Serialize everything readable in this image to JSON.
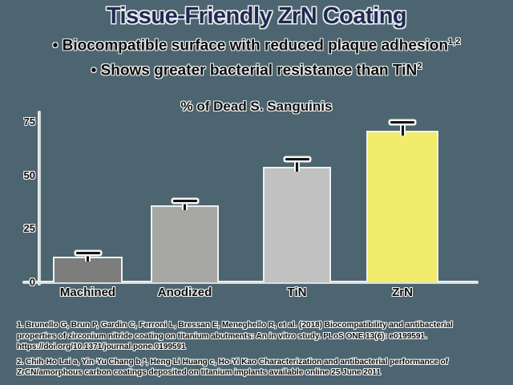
{
  "slide": {
    "title": "Tissue-Friendly ZrN Coating",
    "bullets": [
      {
        "marker": "• ",
        "text": "Biocompatible surface with reduced plaque adhesion",
        "sup": "1,2"
      },
      {
        "marker": "• ",
        "text": "Shows greater bacterial resistance than TiN",
        "sup": "2"
      }
    ]
  },
  "chart_data": {
    "type": "bar",
    "title": "% of Dead S. Sanguinis",
    "categories": [
      "Machined",
      "Anodized",
      "TiN",
      "ZrN"
    ],
    "values": [
      12,
      36,
      54,
      71
    ],
    "error_bars": [
      1.5,
      2,
      3.5,
      3.5
    ],
    "bar_colors": [
      "#7d7d7d",
      "#a7a7a5",
      "#c1c1c1",
      "#f2ec6d"
    ],
    "highlight_category": "ZrN",
    "xlabel": "",
    "ylabel": "",
    "yticks": [
      0,
      25,
      50,
      75
    ],
    "ylim": [
      0,
      80
    ],
    "grid": false,
    "legend": false
  },
  "footnotes": {
    "ref1": {
      "lines": [
        "1. Brunello G, Brun P, Gardin C, Ferroni L, Bressan E, Meneghello R, et al. (2018) Biocompatibility and antibacterial",
        "properties of zirconium nitride coating on titanium abutments: An in vitro study. PLoS ONE 13(6): e0199591.",
        "https://doi.org/10.1371/journal.pone.0199591"
      ]
    },
    "ref2": {
      "lines": [
        "2. Chih-Ho Lai a, Yin-Yu Chang b,*, Heng-Li Huang c, Ho-Yi Kao Characterization and antibacterial performance of",
        "ZrCN/amorphous carbon coatings deposited on titanium implants available online 25 June 2011"
      ]
    }
  },
  "colors": {
    "background": "#4d6570",
    "title_text": "#1e2a52",
    "body_text": "#0c0c0c",
    "axis": "#e9eded",
    "highlight_bar": "#f2ec6d"
  }
}
